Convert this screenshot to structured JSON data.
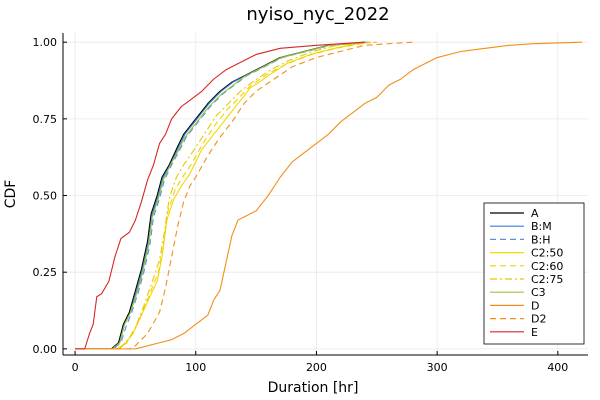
{
  "chart_data": {
    "type": "line",
    "title": "nyiso_nyc_2022",
    "xlabel": "Duration [hr]",
    "ylabel": "CDF",
    "xlim": [
      -10,
      425
    ],
    "ylim": [
      -0.02,
      1.03
    ],
    "xticks": [
      0,
      100,
      200,
      300,
      400
    ],
    "yticks": [
      0,
      0.25,
      0.5,
      0.75,
      1.0
    ],
    "xtick_labels": [
      "0",
      "100",
      "200",
      "300",
      "400"
    ],
    "ytick_labels": [
      "0.00",
      "0.25",
      "0.50",
      "0.75",
      "1.00"
    ],
    "grid": true,
    "legend_position": "bottom-right",
    "series": [
      {
        "name": "A",
        "color": "#000000",
        "dash": "solid",
        "points": [
          [
            0,
            0
          ],
          [
            30,
            0
          ],
          [
            36,
            0.02
          ],
          [
            40,
            0.08
          ],
          [
            45,
            0.12
          ],
          [
            50,
            0.19
          ],
          [
            55,
            0.26
          ],
          [
            60,
            0.35
          ],
          [
            63,
            0.44
          ],
          [
            68,
            0.5
          ],
          [
            72,
            0.56
          ],
          [
            78,
            0.6
          ],
          [
            85,
            0.66
          ],
          [
            90,
            0.7
          ],
          [
            100,
            0.75
          ],
          [
            110,
            0.8
          ],
          [
            120,
            0.84
          ],
          [
            130,
            0.87
          ],
          [
            140,
            0.89
          ],
          [
            155,
            0.92
          ],
          [
            170,
            0.95
          ],
          [
            190,
            0.97
          ],
          [
            210,
            0.99
          ],
          [
            240,
            1.0
          ]
        ]
      },
      {
        "name": "B:M",
        "color": "#3a7dd8",
        "dash": "solid",
        "points": [
          [
            0,
            0
          ],
          [
            31,
            0
          ],
          [
            37,
            0.02
          ],
          [
            41,
            0.08
          ],
          [
            46,
            0.12
          ],
          [
            51,
            0.19
          ],
          [
            56,
            0.26
          ],
          [
            61,
            0.35
          ],
          [
            64,
            0.44
          ],
          [
            69,
            0.5
          ],
          [
            73,
            0.56
          ],
          [
            79,
            0.6
          ],
          [
            86,
            0.66
          ],
          [
            91,
            0.7
          ],
          [
            101,
            0.75
          ],
          [
            111,
            0.8
          ],
          [
            121,
            0.84
          ],
          [
            131,
            0.87
          ],
          [
            141,
            0.89
          ],
          [
            156,
            0.92
          ],
          [
            171,
            0.95
          ],
          [
            191,
            0.97
          ],
          [
            211,
            0.99
          ],
          [
            242,
            1.0
          ]
        ]
      },
      {
        "name": "B:H",
        "color": "#5b8fe0",
        "dash": "dash",
        "points": [
          [
            0,
            0
          ],
          [
            32,
            0
          ],
          [
            38,
            0.02
          ],
          [
            42,
            0.07
          ],
          [
            47,
            0.12
          ],
          [
            52,
            0.18
          ],
          [
            57,
            0.25
          ],
          [
            62,
            0.34
          ],
          [
            65,
            0.43
          ],
          [
            70,
            0.49
          ],
          [
            74,
            0.55
          ],
          [
            80,
            0.6
          ],
          [
            87,
            0.65
          ],
          [
            92,
            0.69
          ],
          [
            102,
            0.74
          ],
          [
            112,
            0.79
          ],
          [
            122,
            0.83
          ],
          [
            132,
            0.86
          ],
          [
            142,
            0.89
          ],
          [
            157,
            0.92
          ],
          [
            172,
            0.95
          ],
          [
            192,
            0.97
          ],
          [
            212,
            0.99
          ],
          [
            244,
            1.0
          ]
        ]
      },
      {
        "name": "C2:50",
        "color": "#f5d800",
        "dash": "solid",
        "points": [
          [
            0,
            0
          ],
          [
            35,
            0
          ],
          [
            42,
            0.02
          ],
          [
            48,
            0.05
          ],
          [
            55,
            0.11
          ],
          [
            62,
            0.17
          ],
          [
            68,
            0.22
          ],
          [
            72,
            0.3
          ],
          [
            76,
            0.42
          ],
          [
            82,
            0.49
          ],
          [
            88,
            0.53
          ],
          [
            95,
            0.57
          ],
          [
            105,
            0.65
          ],
          [
            115,
            0.7
          ],
          [
            125,
            0.75
          ],
          [
            135,
            0.8
          ],
          [
            145,
            0.85
          ],
          [
            160,
            0.89
          ],
          [
            175,
            0.93
          ],
          [
            195,
            0.96
          ],
          [
            215,
            0.98
          ],
          [
            240,
            1.0
          ]
        ]
      },
      {
        "name": "C2:60",
        "color": "#f0d000",
        "dash": "dash",
        "points": [
          [
            0,
            0
          ],
          [
            36,
            0
          ],
          [
            43,
            0.02
          ],
          [
            49,
            0.06
          ],
          [
            56,
            0.12
          ],
          [
            63,
            0.19
          ],
          [
            69,
            0.25
          ],
          [
            73,
            0.33
          ],
          [
            77,
            0.45
          ],
          [
            83,
            0.52
          ],
          [
            89,
            0.56
          ],
          [
            96,
            0.6
          ],
          [
            106,
            0.67
          ],
          [
            116,
            0.73
          ],
          [
            126,
            0.78
          ],
          [
            136,
            0.82
          ],
          [
            146,
            0.86
          ],
          [
            161,
            0.9
          ],
          [
            176,
            0.93
          ],
          [
            196,
            0.96
          ],
          [
            216,
            0.98
          ],
          [
            245,
            1.0
          ]
        ]
      },
      {
        "name": "C2:75",
        "color": "#e8c800",
        "dash": "dashdot",
        "points": [
          [
            0,
            0
          ],
          [
            37,
            0
          ],
          [
            44,
            0.03
          ],
          [
            50,
            0.07
          ],
          [
            57,
            0.14
          ],
          [
            64,
            0.22
          ],
          [
            70,
            0.29
          ],
          [
            74,
            0.38
          ],
          [
            78,
            0.49
          ],
          [
            84,
            0.56
          ],
          [
            90,
            0.6
          ],
          [
            97,
            0.64
          ],
          [
            107,
            0.7
          ],
          [
            117,
            0.76
          ],
          [
            127,
            0.8
          ],
          [
            137,
            0.84
          ],
          [
            147,
            0.87
          ],
          [
            162,
            0.91
          ],
          [
            177,
            0.94
          ],
          [
            197,
            0.97
          ],
          [
            217,
            0.99
          ],
          [
            250,
            1.0
          ]
        ]
      },
      {
        "name": "C3",
        "color": "#9bc53d",
        "dash": "solid",
        "points": [
          [
            0,
            0
          ],
          [
            31,
            0
          ],
          [
            37,
            0.02
          ],
          [
            41,
            0.08
          ],
          [
            46,
            0.12
          ],
          [
            51,
            0.18
          ],
          [
            56,
            0.25
          ],
          [
            61,
            0.34
          ],
          [
            64,
            0.43
          ],
          [
            69,
            0.49
          ],
          [
            73,
            0.55
          ],
          [
            79,
            0.6
          ],
          [
            86,
            0.65
          ],
          [
            91,
            0.69
          ],
          [
            101,
            0.74
          ],
          [
            111,
            0.79
          ],
          [
            121,
            0.83
          ],
          [
            131,
            0.86
          ],
          [
            141,
            0.89
          ],
          [
            156,
            0.92
          ],
          [
            171,
            0.95
          ],
          [
            191,
            0.97
          ],
          [
            211,
            0.99
          ],
          [
            243,
            1.0
          ]
        ]
      },
      {
        "name": "D",
        "color": "#f28e1c",
        "dash": "solid",
        "points": [
          [
            0,
            0
          ],
          [
            50,
            0
          ],
          [
            60,
            0.01
          ],
          [
            70,
            0.02
          ],
          [
            80,
            0.03
          ],
          [
            90,
            0.05
          ],
          [
            100,
            0.08
          ],
          [
            110,
            0.11
          ],
          [
            115,
            0.16
          ],
          [
            120,
            0.19
          ],
          [
            125,
            0.28
          ],
          [
            130,
            0.37
          ],
          [
            135,
            0.42
          ],
          [
            140,
            0.43
          ],
          [
            150,
            0.45
          ],
          [
            160,
            0.5
          ],
          [
            170,
            0.56
          ],
          [
            180,
            0.61
          ],
          [
            190,
            0.64
          ],
          [
            200,
            0.67
          ],
          [
            210,
            0.7
          ],
          [
            220,
            0.74
          ],
          [
            230,
            0.77
          ],
          [
            240,
            0.8
          ],
          [
            250,
            0.82
          ],
          [
            260,
            0.86
          ],
          [
            270,
            0.88
          ],
          [
            280,
            0.91
          ],
          [
            290,
            0.93
          ],
          [
            300,
            0.95
          ],
          [
            320,
            0.97
          ],
          [
            340,
            0.98
          ],
          [
            360,
            0.99
          ],
          [
            380,
            0.995
          ],
          [
            420,
            1.0
          ]
        ]
      },
      {
        "name": "D2",
        "color": "#f28e1c",
        "dash": "dash",
        "points": [
          [
            0,
            0
          ],
          [
            45,
            0
          ],
          [
            50,
            0.01
          ],
          [
            55,
            0.03
          ],
          [
            60,
            0.05
          ],
          [
            63,
            0.07
          ],
          [
            70,
            0.12
          ],
          [
            75,
            0.2
          ],
          [
            80,
            0.3
          ],
          [
            85,
            0.4
          ],
          [
            90,
            0.48
          ],
          [
            95,
            0.53
          ],
          [
            100,
            0.56
          ],
          [
            110,
            0.63
          ],
          [
            120,
            0.69
          ],
          [
            130,
            0.74
          ],
          [
            140,
            0.8
          ],
          [
            150,
            0.84
          ],
          [
            165,
            0.88
          ],
          [
            180,
            0.92
          ],
          [
            200,
            0.95
          ],
          [
            220,
            0.97
          ],
          [
            240,
            0.99
          ],
          [
            280,
            1.0
          ]
        ]
      },
      {
        "name": "E",
        "color": "#d62728",
        "dash": "solid",
        "points": [
          [
            0,
            0
          ],
          [
            8,
            0
          ],
          [
            12,
            0.05
          ],
          [
            15,
            0.08
          ],
          [
            18,
            0.17
          ],
          [
            22,
            0.18
          ],
          [
            28,
            0.22
          ],
          [
            33,
            0.3
          ],
          [
            38,
            0.36
          ],
          [
            45,
            0.38
          ],
          [
            50,
            0.42
          ],
          [
            55,
            0.48
          ],
          [
            60,
            0.55
          ],
          [
            65,
            0.6
          ],
          [
            70,
            0.67
          ],
          [
            75,
            0.7
          ],
          [
            80,
            0.75
          ],
          [
            88,
            0.79
          ],
          [
            95,
            0.81
          ],
          [
            105,
            0.84
          ],
          [
            115,
            0.88
          ],
          [
            125,
            0.91
          ],
          [
            135,
            0.93
          ],
          [
            150,
            0.96
          ],
          [
            170,
            0.98
          ],
          [
            200,
            0.99
          ],
          [
            240,
            1.0
          ]
        ]
      }
    ]
  }
}
